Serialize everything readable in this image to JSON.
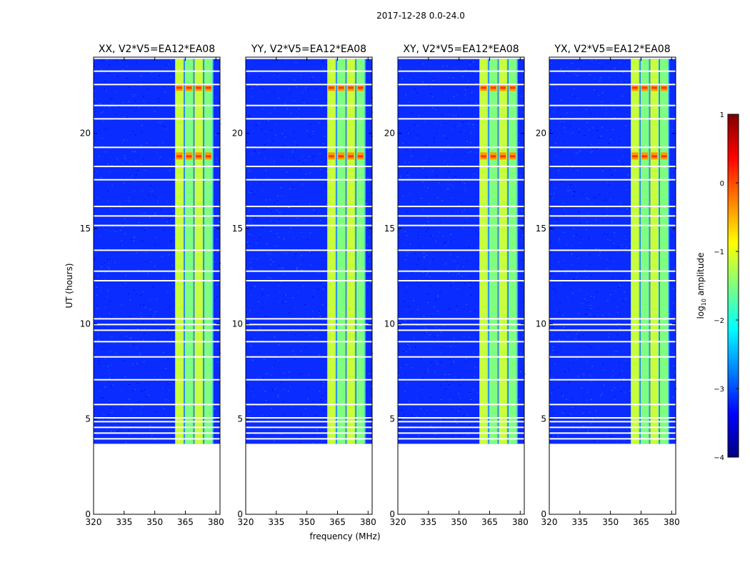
{
  "chart_data": {
    "type": "heatmap",
    "suptitle": "2017-12-28 0.0-24.0",
    "xlabel": "frequency (MHz)",
    "ylabel": "UT (hours)",
    "xlim": [
      320,
      382
    ],
    "ylim": [
      0,
      24
    ],
    "xticks": [
      320,
      335,
      350,
      365,
      380
    ],
    "yticks": [
      0,
      5,
      10,
      15,
      20
    ],
    "data_start_hour": 3.7,
    "data_end_hour": 23.9,
    "panels": [
      {
        "title": "XX, V2*V5=EA12*EA08",
        "band_start_mhz": 360,
        "band_end_mhz": 379
      },
      {
        "title": "YY, V2*V5=EA12*EA08",
        "band_start_mhz": 360,
        "band_end_mhz": 379
      },
      {
        "title": "XY, V2*V5=EA12*EA08",
        "band_start_mhz": 360,
        "band_end_mhz": 379
      },
      {
        "title": "YX, V2*V5=EA12*EA08",
        "band_start_mhz": 360,
        "band_end_mhz": 379
      }
    ],
    "colorbar": {
      "label": "log10 amplitude",
      "label_base": "log",
      "label_sub": "10",
      "label_rest": " amplitude",
      "range": [
        -4,
        1
      ],
      "ticks": [
        1,
        0,
        -1,
        -2,
        -3,
        -4
      ],
      "tick_labels": [
        "1",
        "0",
        "−1",
        "−2",
        "−3",
        "−4"
      ],
      "colormap": [
        "#00007f",
        "#0000ff",
        "#007fff",
        "#00ffff",
        "#7fff7f",
        "#ffff00",
        "#ff7f00",
        "#ff0000",
        "#7f0000"
      ]
    }
  }
}
